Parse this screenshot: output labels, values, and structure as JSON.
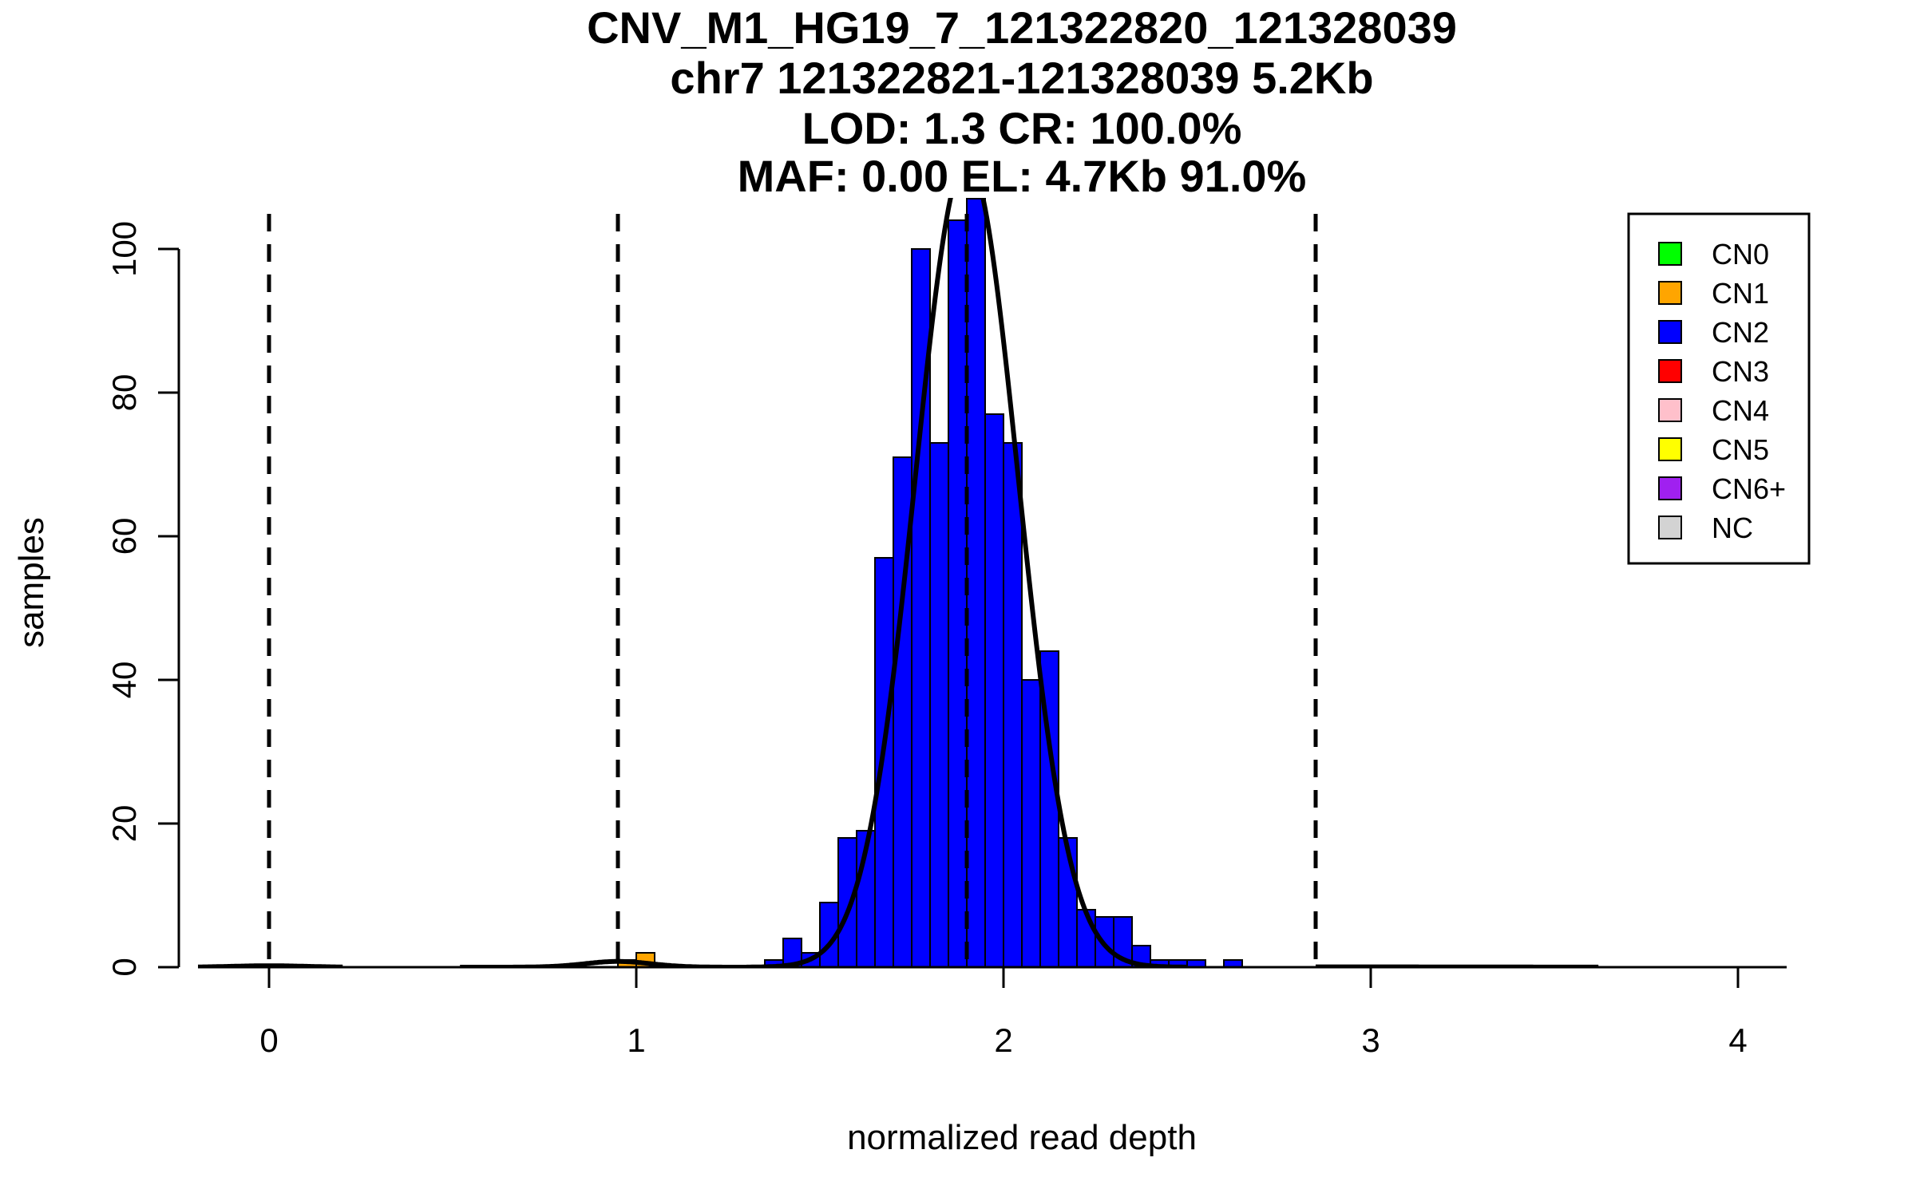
{
  "chart_data": {
    "type": "bar",
    "title_lines": [
      "CNV_M1_HG19_7_121322820_121328039",
      "chr7 121322821-121328039 5.2Kb",
      "LOD: 1.3 CR: 100.0%",
      "MAF: 0.00 EL: 4.7Kb 91.0%"
    ],
    "xlabel": "normalized read depth",
    "ylabel": "samples",
    "xlim": [
      -0.2,
      4.12
    ],
    "ylim": [
      0,
      108
    ],
    "x_ticks": [
      0,
      1,
      2,
      3,
      4
    ],
    "y_ticks": [
      0,
      20,
      40,
      60,
      80,
      100
    ],
    "bin_width": 0.05,
    "bins": [
      {
        "x0": 0.95,
        "count": 1,
        "color": "#FFA500"
      },
      {
        "x0": 1.0,
        "count": 2,
        "color": "#FFA500"
      },
      {
        "x0": 1.35,
        "count": 1,
        "color": "#0000FF"
      },
      {
        "x0": 1.4,
        "count": 4,
        "color": "#0000FF"
      },
      {
        "x0": 1.45,
        "count": 2,
        "color": "#0000FF"
      },
      {
        "x0": 1.5,
        "count": 9,
        "color": "#0000FF"
      },
      {
        "x0": 1.55,
        "count": 18,
        "color": "#0000FF"
      },
      {
        "x0": 1.6,
        "count": 19,
        "color": "#0000FF"
      },
      {
        "x0": 1.65,
        "count": 57,
        "color": "#0000FF"
      },
      {
        "x0": 1.7,
        "count": 71,
        "color": "#0000FF"
      },
      {
        "x0": 1.75,
        "count": 100,
        "color": "#0000FF"
      },
      {
        "x0": 1.8,
        "count": 73,
        "color": "#0000FF"
      },
      {
        "x0": 1.85,
        "count": 104,
        "color": "#0000FF"
      },
      {
        "x0": 1.9,
        "count": 107,
        "color": "#0000FF"
      },
      {
        "x0": 1.95,
        "count": 77,
        "color": "#0000FF"
      },
      {
        "x0": 2.0,
        "count": 73,
        "color": "#0000FF"
      },
      {
        "x0": 2.05,
        "count": 40,
        "color": "#0000FF"
      },
      {
        "x0": 2.1,
        "count": 44,
        "color": "#0000FF"
      },
      {
        "x0": 2.15,
        "count": 18,
        "color": "#0000FF"
      },
      {
        "x0": 2.2,
        "count": 8,
        "color": "#0000FF"
      },
      {
        "x0": 2.25,
        "count": 7,
        "color": "#0000FF"
      },
      {
        "x0": 2.3,
        "count": 7,
        "color": "#0000FF"
      },
      {
        "x0": 2.35,
        "count": 3,
        "color": "#0000FF"
      },
      {
        "x0": 2.4,
        "count": 1,
        "color": "#0000FF"
      },
      {
        "x0": 2.45,
        "count": 1,
        "color": "#0000FF"
      },
      {
        "x0": 2.5,
        "count": 1,
        "color": "#0000FF"
      },
      {
        "x0": 2.6,
        "count": 1,
        "color": "#0000FF"
      }
    ],
    "dashed_lines": [
      0.0,
      0.95,
      1.9,
      2.85
    ],
    "density_curves": [
      {
        "mean": 0.0,
        "sd": 0.1,
        "scale": 0.05,
        "range": [
          -0.2,
          0.2
        ]
      },
      {
        "mean": 0.95,
        "sd": 0.09,
        "scale": 0.18,
        "range": [
          0.52,
          1.4
        ]
      },
      {
        "mean": 1.9,
        "sd": 0.14,
        "scale": 39.5,
        "range": [
          1.3,
          2.5
        ]
      },
      {
        "mean": 2.85,
        "sd": 0.4,
        "scale": 0.05,
        "range": [
          2.85,
          3.62
        ]
      }
    ],
    "legend": {
      "placement": "top-right",
      "items": [
        {
          "label": "CN0",
          "color": "#00FF00"
        },
        {
          "label": "CN1",
          "color": "#FFA500"
        },
        {
          "label": "CN2",
          "color": "#0000FF"
        },
        {
          "label": "CN3",
          "color": "#FF0000"
        },
        {
          "label": "CN4",
          "color": "#FFC0CB"
        },
        {
          "label": "CN5",
          "color": "#FFFF00"
        },
        {
          "label": "CN6+",
          "color": "#A020F0"
        },
        {
          "label": "NC",
          "color": "#D3D3D3"
        }
      ]
    }
  }
}
